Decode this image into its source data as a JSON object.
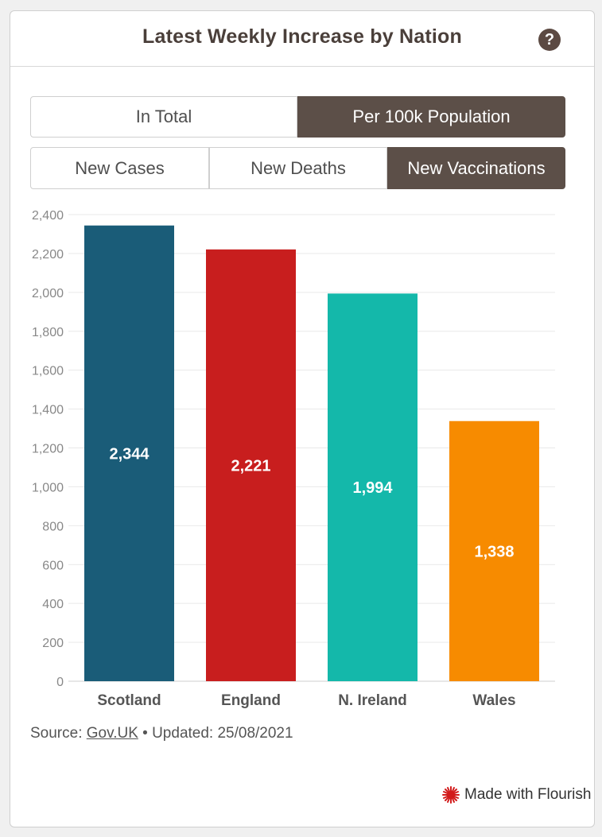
{
  "header": {
    "title": "Latest Weekly Increase by Nation",
    "help_icon": "question-circle-icon"
  },
  "toggles": {
    "mode": [
      {
        "label": "In Total",
        "active": false
      },
      {
        "label": "Per 100k Population",
        "active": true
      }
    ],
    "metric": [
      {
        "label": "New Cases",
        "active": false
      },
      {
        "label": "New Deaths",
        "active": false
      },
      {
        "label": "New Vaccinations",
        "active": true
      }
    ]
  },
  "chart_data": {
    "type": "bar",
    "categories": [
      "Scotland",
      "England",
      "N. Ireland",
      "Wales"
    ],
    "values": [
      2344,
      2221,
      1994,
      1338
    ],
    "value_labels": [
      "2,344",
      "2,221",
      "1,994",
      "1,338"
    ],
    "colors": [
      "#1a5c78",
      "#c81e1e",
      "#14b8aa",
      "#f78b00"
    ],
    "yticks": [
      "0",
      "200",
      "400",
      "600",
      "800",
      "1,000",
      "1,200",
      "1,400",
      "1,600",
      "1,800",
      "2,000",
      "2,200",
      "2,400"
    ],
    "ylim": [
      0,
      2400
    ],
    "grid": true
  },
  "footer": {
    "source_prefix": "Source: ",
    "source_link": "Gov.UK",
    "updated": " • Updated: 25/08/2021",
    "flourish": "Made with Flourish",
    "flourish_icon": "flourish-starburst-icon"
  }
}
